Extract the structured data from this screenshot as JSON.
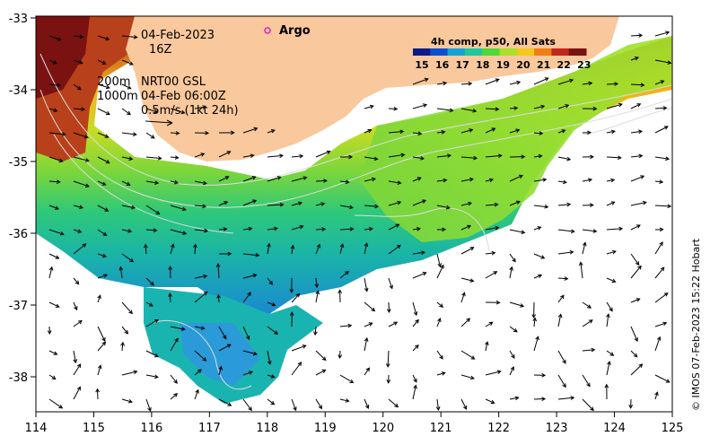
{
  "map": {
    "date_label": "04-Feb-2023",
    "hour_label": "16Z",
    "depth_label_1": "200m",
    "depth_label_2": "1000m",
    "model_label": "NRT00 GSL",
    "model_time": "04-Feb 06:00Z",
    "velocity_scale": "0.5m/s (1kt 24h)",
    "argo_label": "Argo",
    "colorbar_title": "4h comp, p50, All Sats",
    "colorbar_ticks": [
      "15",
      "16",
      "17",
      "18",
      "19",
      "20",
      "21",
      "22",
      "23"
    ],
    "colorbar_colors": [
      "#0b1a8a",
      "#0b4fd2",
      "#14a0d8",
      "#1fc89a",
      "#4fd83a",
      "#a8e02a",
      "#f2c81a",
      "#ef7e12",
      "#c0261a",
      "#7a1212"
    ],
    "x_ticks": [
      "114",
      "115",
      "116",
      "117",
      "118",
      "119",
      "120",
      "121",
      "122",
      "123",
      "124",
      "125"
    ],
    "y_ticks": [
      "-33",
      "-34",
      "-35",
      "-36",
      "-37",
      "-38"
    ],
    "credit": "© IMOS 07-Feb-2023 15:22 Hobart",
    "land_color": "#f9c89c"
  }
}
